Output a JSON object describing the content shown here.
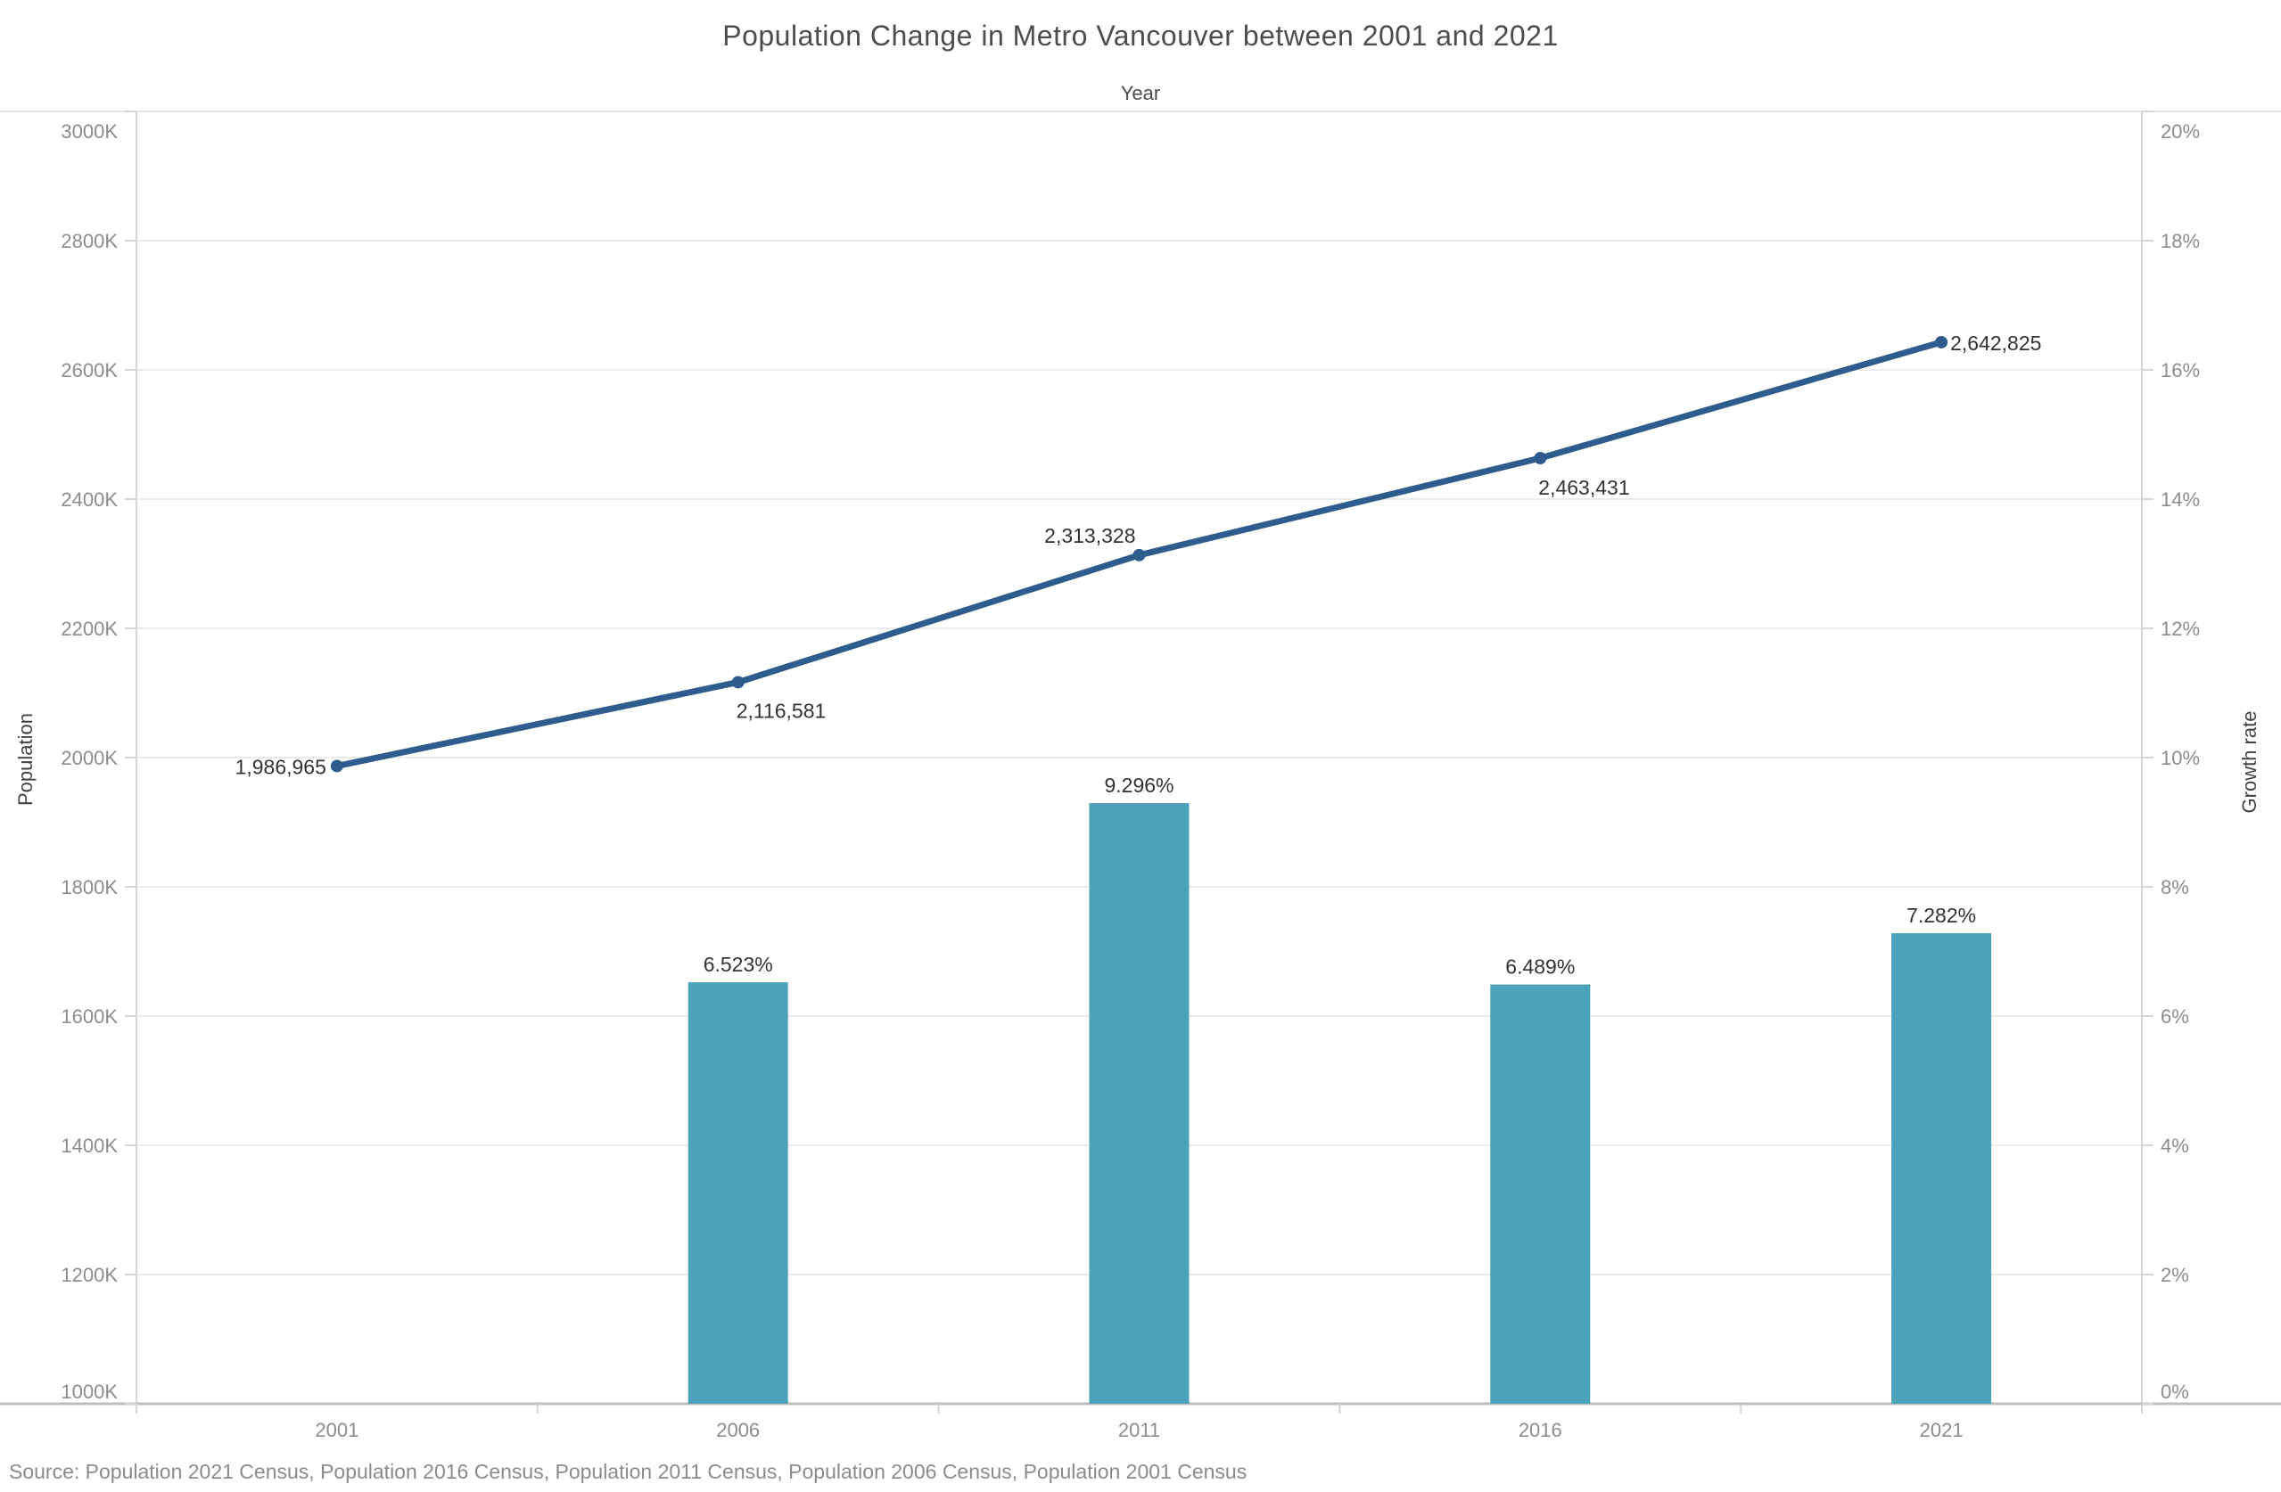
{
  "title": "Population Change in Metro Vancouver between 2001 and 2021",
  "source": "Source: Population 2021 Census, Population 2016 Census, Population 2011 Census, Population 2006 Census, Population 2001 Census",
  "chart_data": {
    "type": "combo",
    "title": "Population Change in Metro Vancouver between 2001 and 2021",
    "grid": true,
    "legend": false,
    "x_axis": {
      "title": "Year",
      "categories": [
        "2001",
        "2006",
        "2011",
        "2016",
        "2021"
      ]
    },
    "left_axis": {
      "title": "Population",
      "min": 1000000,
      "max": 3000000,
      "ticks": [
        "3000K",
        "2800K",
        "2600K",
        "2400K",
        "2200K",
        "2000K",
        "1800K",
        "1600K",
        "1400K",
        "1200K",
        "1000K"
      ]
    },
    "right_axis": {
      "title": "Growth rate",
      "min": 0,
      "max": 20,
      "ticks": [
        "20%",
        "18%",
        "16%",
        "14%",
        "12%",
        "10%",
        "8%",
        "6%",
        "4%",
        "2%",
        "0%"
      ]
    },
    "series": [
      {
        "name": "Population",
        "type": "line",
        "axis": "left",
        "color": "#2e5c8d",
        "values": [
          1986965,
          2116581,
          2313328,
          2463431,
          2642825
        ],
        "labels": [
          "1,986,965",
          "2,116,581",
          "2,313,328",
          "2,463,431",
          "2,642,825"
        ]
      },
      {
        "name": "Growth rate",
        "type": "bar",
        "axis": "right",
        "color": "#4ba2b9",
        "values": [
          null,
          6.523,
          9.296,
          6.489,
          7.282
        ],
        "labels": [
          null,
          "6.523%",
          "9.296%",
          "6.489%",
          "7.282%"
        ]
      }
    ]
  }
}
